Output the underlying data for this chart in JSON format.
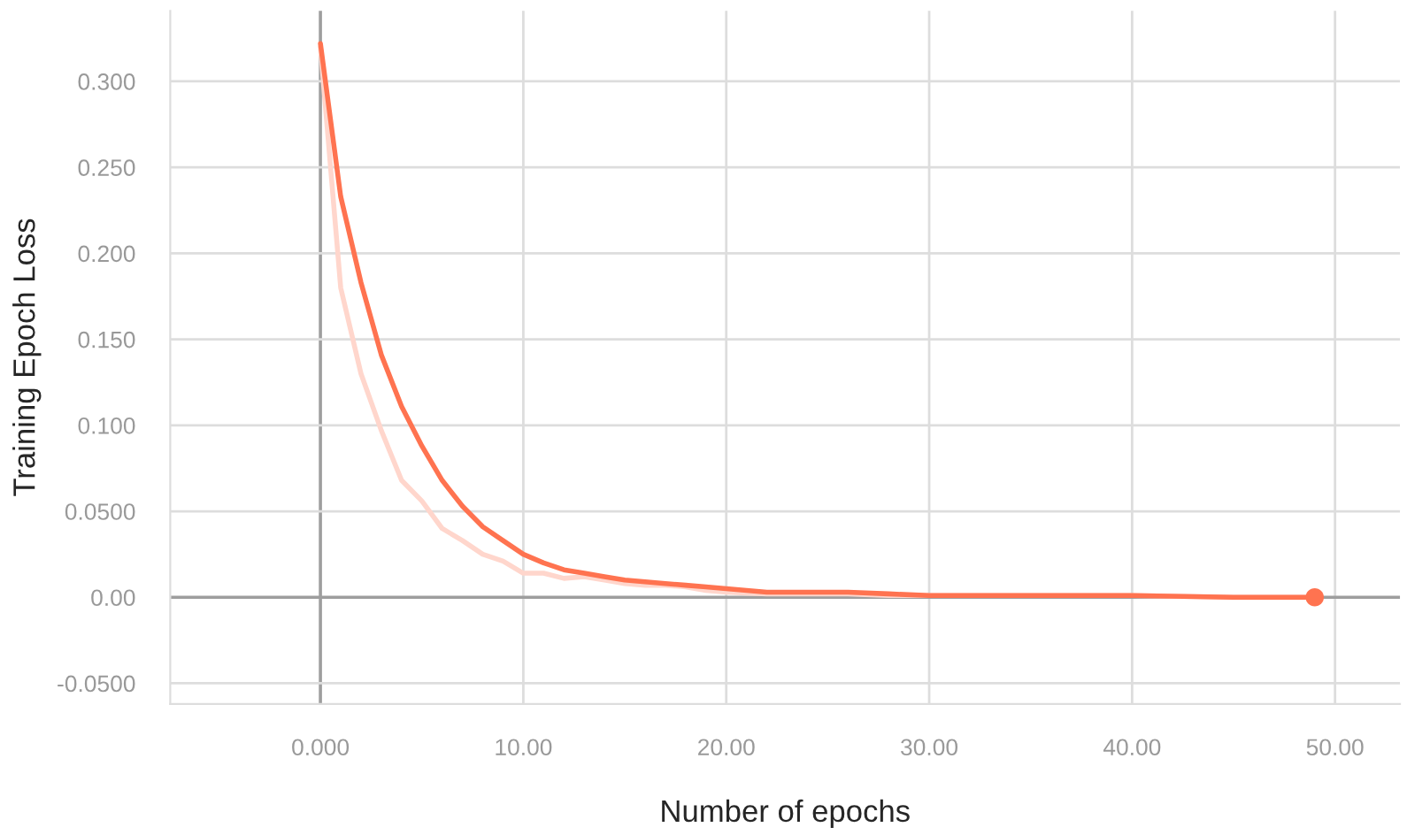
{
  "chart_data": {
    "type": "line",
    "xlabel": "Number of epochs",
    "ylabel": "Training Epoch Loss",
    "series": [
      {
        "color": "#ffd6cc",
        "x": [
          0,
          1,
          2,
          3,
          4,
          5,
          6,
          7,
          8,
          9,
          10,
          11,
          12,
          13,
          14,
          15,
          16,
          17,
          18,
          19,
          20,
          22,
          24,
          26,
          28,
          30,
          35,
          40,
          45,
          49
        ],
        "values": [
          0.32,
          0.18,
          0.13,
          0.097,
          0.068,
          0.056,
          0.04,
          0.033,
          0.025,
          0.021,
          0.014,
          0.014,
          0.011,
          0.012,
          0.01,
          0.008,
          0.007,
          0.007,
          0.006,
          0.004,
          0.003,
          0.002,
          0.002,
          0.002,
          0.001,
          0.001,
          0.001,
          0.001,
          0.0,
          0.0
        ]
      },
      {
        "color": "#ff7350",
        "x": [
          0,
          1,
          2,
          3,
          4,
          5,
          6,
          7,
          8,
          9,
          10,
          11,
          12,
          13,
          14,
          15,
          16,
          17,
          18,
          19,
          20,
          21,
          22,
          23,
          24,
          26,
          28,
          30,
          35,
          38,
          40,
          45,
          49
        ],
        "values": [
          0.322,
          0.233,
          0.183,
          0.141,
          0.111,
          0.088,
          0.068,
          0.053,
          0.041,
          0.033,
          0.025,
          0.02,
          0.016,
          0.014,
          0.012,
          0.01,
          0.009,
          0.008,
          0.007,
          0.006,
          0.005,
          0.004,
          0.003,
          0.003,
          0.003,
          0.003,
          0.002,
          0.001,
          0.001,
          0.001,
          0.001,
          0.0,
          0.0
        ]
      },
      {
        "type": "scatter",
        "color": "#ff7350",
        "x": [
          49
        ],
        "values": [
          0.0
        ]
      }
    ],
    "xlim": [
      -7.4,
      53.2
    ],
    "ylim": [
      -0.062,
      0.341
    ],
    "xticks": [
      {
        "value": 0,
        "label": "0.000"
      },
      {
        "value": 10,
        "label": "10.00"
      },
      {
        "value": 20,
        "label": "20.00"
      },
      {
        "value": 30,
        "label": "30.00"
      },
      {
        "value": 40,
        "label": "40.00"
      },
      {
        "value": 50,
        "label": "50.00"
      }
    ],
    "yticks": [
      {
        "value": -0.05,
        "label": "-0.0500"
      },
      {
        "value": 0,
        "label": "0.00"
      },
      {
        "value": 0.05,
        "label": "0.0500"
      },
      {
        "value": 0.1,
        "label": "0.100"
      },
      {
        "value": 0.15,
        "label": "0.150"
      },
      {
        "value": 0.2,
        "label": "0.200"
      },
      {
        "value": 0.25,
        "label": "0.250"
      },
      {
        "value": 0.3,
        "label": "0.300"
      }
    ],
    "grid": true,
    "line_style": "solid"
  }
}
